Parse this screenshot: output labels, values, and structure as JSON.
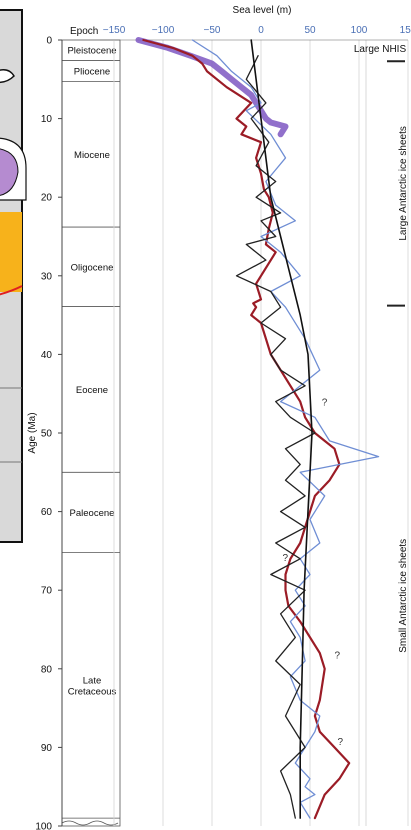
{
  "chart_data": {
    "type": "line",
    "title": "",
    "xlabel": "Sea level (m)",
    "ylabel": "Age (Ma)",
    "xlim": [
      -150,
      150
    ],
    "ylim": [
      0,
      100
    ],
    "y_inverted": true,
    "x_ticks": [
      -150,
      -100,
      -50,
      0,
      50,
      100,
      150
    ],
    "y_ticks": [
      0,
      10,
      20,
      30,
      40,
      50,
      60,
      70,
      80,
      90,
      100
    ],
    "grid": "vertical lines at x ticks",
    "epoch_column_header": "Epoch",
    "epochs": [
      {
        "name": "Pleistocene",
        "top": 0,
        "bottom": 2.6
      },
      {
        "name": "Pliocene",
        "top": 2.6,
        "bottom": 5.3
      },
      {
        "name": "Miocene",
        "top": 5.3,
        "bottom": 23.8
      },
      {
        "name": "Oligocene",
        "top": 23.8,
        "bottom": 33.9
      },
      {
        "name": "Eocene",
        "top": 33.9,
        "bottom": 55.0
      },
      {
        "name": "Paleocene",
        "top": 55.0,
        "bottom": 65.2
      },
      {
        "name": "Late Cretaceous",
        "top": 65.2,
        "bottom": 99
      }
    ],
    "ice_sheet_labels": {
      "nhis": "Large NHIS",
      "large_antarctic": "Large Antarctic ice sheets",
      "small_antarctic": "Small Antarctic ice sheets"
    },
    "ice_sheet_boundaries": [
      2.7,
      33.8
    ],
    "annotations": [
      {
        "text": "?",
        "x": 62,
        "y": 46.5
      },
      {
        "text": "?",
        "x": 22,
        "y": 66.3
      },
      {
        "text": "?",
        "x": 75,
        "y": 78.7
      },
      {
        "text": "?",
        "x": 78,
        "y": 89.7
      }
    ],
    "series": [
      {
        "color": "#7e57c2",
        "style": "band",
        "x": [
          -125,
          -95,
          -72,
          -50,
          -40,
          -30,
          -20,
          -10,
          -5,
          0,
          5,
          10,
          25,
          20
        ],
        "y": [
          0,
          1,
          2,
          3,
          4,
          5,
          6,
          7,
          8,
          9,
          10,
          10.5,
          11,
          12
        ]
      },
      {
        "color": "#9b1c26",
        "x": [
          -120,
          -90,
          -70,
          -60,
          -55,
          -35,
          -10,
          -25,
          -15,
          -20,
          0,
          -5,
          0,
          3,
          8,
          12,
          8,
          5,
          15,
          5,
          -5,
          0,
          -8,
          -5,
          -10,
          0,
          5,
          10,
          20,
          30,
          40,
          45,
          55,
          65,
          75,
          80,
          70,
          55,
          50,
          45,
          40,
          30,
          25,
          25,
          28,
          40,
          60,
          65,
          60,
          55,
          60,
          75,
          90,
          80,
          65,
          55
        ],
        "y": [
          0,
          1,
          2,
          3,
          4,
          6,
          8,
          10,
          11,
          12,
          13,
          15,
          17,
          19,
          20,
          22,
          24,
          26,
          27,
          29,
          31,
          33,
          33.5,
          34,
          35,
          36,
          38,
          40,
          42,
          44,
          46,
          48,
          50,
          51,
          52,
          54,
          56,
          58,
          60,
          62,
          64,
          66,
          68,
          70,
          72,
          74,
          78,
          80,
          84,
          86,
          88,
          90,
          92,
          94,
          96,
          99
        ]
      },
      {
        "color": "#6f8ed4",
        "x": [
          -70,
          -45,
          -30,
          -10,
          0,
          -15,
          10,
          25,
          5,
          15,
          35,
          0,
          20,
          40,
          10,
          25,
          45,
          60,
          20,
          55,
          70,
          120,
          40,
          65,
          50,
          60,
          40,
          50,
          35,
          45,
          30,
          40,
          45,
          30,
          40,
          60,
          55,
          45,
          35,
          50,
          45,
          55,
          40,
          50
        ],
        "y": [
          0,
          2,
          4,
          6,
          8,
          9,
          12,
          15,
          18,
          21,
          23,
          25,
          27,
          30,
          32,
          34,
          38,
          42,
          46,
          48,
          51,
          53,
          55,
          58,
          61,
          64,
          66,
          68,
          70,
          72,
          74,
          76,
          79,
          81,
          84,
          86,
          88,
          90,
          92,
          94,
          95,
          96,
          97,
          99
        ]
      },
      {
        "color": "#222222",
        "x": [
          -3,
          -15,
          5,
          -10,
          8,
          -5,
          15,
          -5,
          20,
          0,
          15,
          -15,
          5,
          -25,
          10,
          20,
          0,
          25,
          10,
          20,
          45,
          15,
          30,
          55,
          25,
          40,
          25,
          45,
          20,
          45,
          15,
          40,
          10,
          45,
          20,
          35,
          15,
          40,
          25,
          45,
          20,
          30,
          35
        ],
        "y": [
          2,
          5,
          8,
          10,
          13,
          16,
          18,
          20,
          22,
          23,
          25,
          26,
          28,
          30,
          32,
          34,
          36,
          38,
          40,
          42,
          44,
          46,
          48,
          50,
          52,
          54,
          56,
          58,
          60,
          62,
          64,
          66,
          68,
          70,
          73,
          76,
          79,
          82,
          86,
          90,
          93,
          96,
          99
        ]
      },
      {
        "color": "#111111",
        "style": "trend",
        "x": [
          -10,
          -5,
          0,
          5,
          10,
          20,
          30,
          40,
          48,
          52,
          48,
          44,
          42,
          40,
          40
        ],
        "y": [
          0,
          5,
          10,
          15,
          20,
          25,
          30,
          35,
          40,
          50,
          60,
          70,
          80,
          90,
          99
        ]
      }
    ]
  }
}
